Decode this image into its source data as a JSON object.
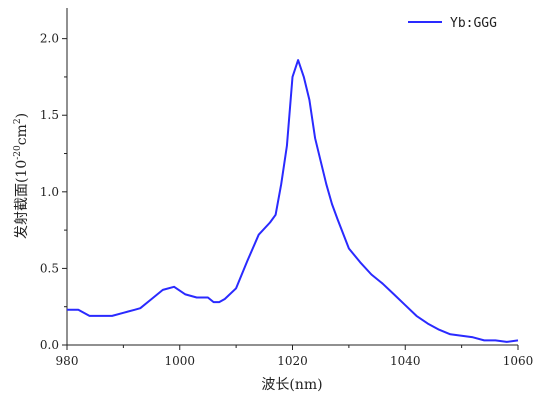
{
  "chart_data": {
    "type": "line",
    "title": "",
    "xlabel": "波长(nm)",
    "ylabel_prefix": "发射截面(10",
    "ylabel_exp1": "-20",
    "ylabel_mid": "cm",
    "ylabel_exp2": "2",
    "ylabel_suffix": ")",
    "xlim": [
      980,
      1060
    ],
    "ylim": [
      0,
      2.2
    ],
    "x_ticks": [
      980,
      1000,
      1020,
      1040,
      1060
    ],
    "x_tick_labels": [
      "980",
      "1000",
      "1020",
      "1040",
      "1060"
    ],
    "y_ticks": [
      0,
      0.5,
      1.0,
      1.5,
      2.0
    ],
    "y_tick_labels": [
      "0.0",
      "0.5",
      "1.0",
      "1.5",
      "2.0"
    ],
    "grid": false,
    "legend_position": "top-right",
    "series": [
      {
        "name": "Yb:GGG",
        "color": "#2a2aff",
        "x": [
          980,
          982,
          984,
          986,
          988,
          990,
          992,
          993,
          995,
          997,
          999,
          1001,
          1003,
          1005,
          1006,
          1007,
          1008,
          1010,
          1012,
          1014,
          1016,
          1017,
          1018,
          1019,
          1020,
          1021,
          1022,
          1023,
          1024,
          1025,
          1026,
          1027,
          1028,
          1030,
          1032,
          1034,
          1036,
          1038,
          1040,
          1042,
          1044,
          1046,
          1048,
          1050,
          1052,
          1054,
          1056,
          1058,
          1060
        ],
        "y": [
          0.23,
          0.23,
          0.19,
          0.19,
          0.19,
          0.21,
          0.23,
          0.24,
          0.3,
          0.36,
          0.38,
          0.33,
          0.31,
          0.31,
          0.28,
          0.28,
          0.3,
          0.37,
          0.55,
          0.72,
          0.8,
          0.85,
          1.05,
          1.3,
          1.75,
          1.86,
          1.75,
          1.6,
          1.35,
          1.2,
          1.05,
          0.92,
          0.82,
          0.63,
          0.54,
          0.46,
          0.4,
          0.33,
          0.26,
          0.19,
          0.14,
          0.1,
          0.07,
          0.06,
          0.05,
          0.03,
          0.03,
          0.02,
          0.03
        ]
      }
    ]
  }
}
